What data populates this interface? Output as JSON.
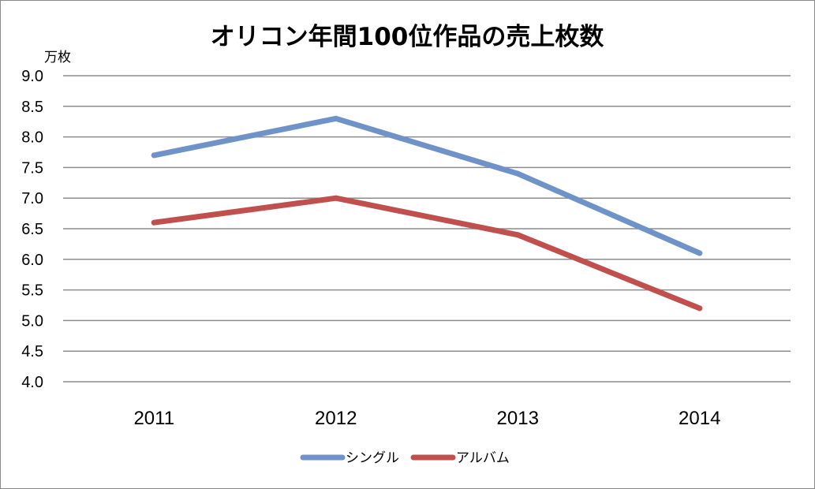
{
  "chart_data": {
    "type": "line",
    "title": "オリコン年間100位作品の売上枚数",
    "ylabel": "万枚",
    "xlabel": "",
    "categories": [
      "2011",
      "2012",
      "2013",
      "2014"
    ],
    "ylim": [
      4.0,
      9.0
    ],
    "yticks": [
      "4.0",
      "4.5",
      "5.0",
      "5.5",
      "6.0",
      "6.5",
      "7.0",
      "7.5",
      "8.0",
      "8.5",
      "9.0"
    ],
    "grid": true,
    "legend_position": "bottom",
    "series": [
      {
        "name": "シングル",
        "values": [
          7.7,
          8.3,
          7.4,
          6.1
        ],
        "color": "#6f93c9"
      },
      {
        "name": "アルバム",
        "values": [
          6.6,
          7.0,
          6.4,
          5.2
        ],
        "color": "#c0504d"
      }
    ]
  }
}
